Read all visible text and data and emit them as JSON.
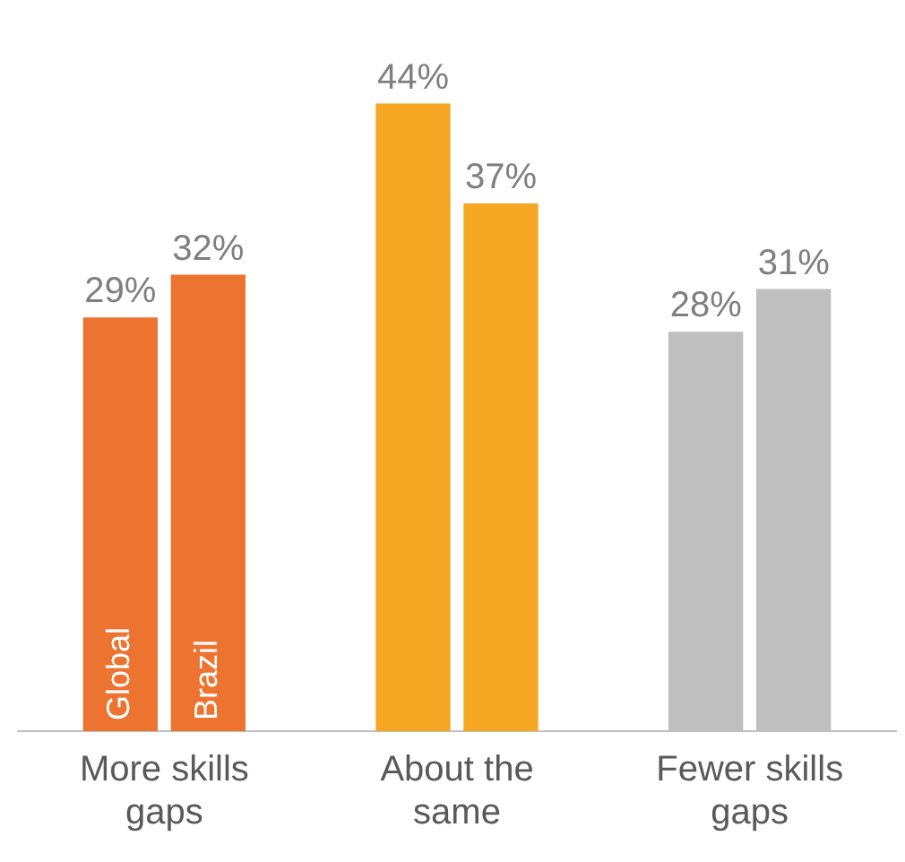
{
  "chart_data": {
    "type": "bar",
    "categories": [
      "More skills gaps",
      "About the same",
      "Fewer skills gaps"
    ],
    "series": [
      {
        "name": "Global",
        "colors": [
          "#ed7430",
          "#f5a623",
          "#bfbfbf"
        ],
        "values": [
          29,
          44,
          28
        ],
        "value_labels": [
          "29%",
          "44%",
          "28%"
        ]
      },
      {
        "name": "Brazil",
        "colors": [
          "#ed7430",
          "#f5a623",
          "#bfbfbf"
        ],
        "values": [
          32,
          37,
          31
        ],
        "value_labels": [
          "32%",
          "37%",
          "31%"
        ]
      }
    ],
    "legend": false,
    "grid": false
  }
}
